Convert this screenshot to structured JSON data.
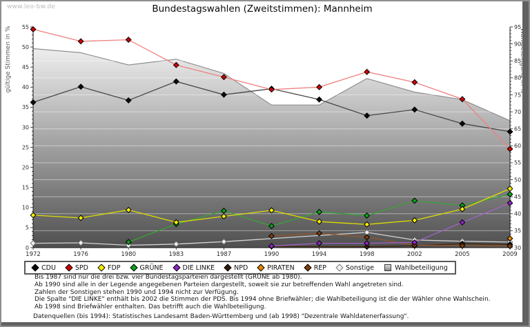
{
  "window": {
    "watermark": "www.leo-bw.de",
    "title": "Bundestagswahlen (Zweitstimmen): Mannheim"
  },
  "chart_data": {
    "type": "line",
    "title": "Bundestagswahlen (Zweitstimmen): Mannheim",
    "x_categories": [
      "1972",
      "1976",
      "1980",
      "1983",
      "1987",
      "1990",
      "1994",
      "1998",
      "2002",
      "2005",
      "2009"
    ],
    "y_left": {
      "label": "gültige Stimmen in %",
      "min": 0,
      "max": 55,
      "tick_major": 5,
      "tick_minor": 1
    },
    "y_right": {
      "label": "Wahlbeteiligung in %",
      "min": 30,
      "max": 95,
      "tick_major": 5,
      "tick_minor": 1
    },
    "grid": "horizontal-white-on-area",
    "legend_position": "bottom",
    "series": [
      {
        "name": "CDU",
        "axis": "left",
        "marker": "diamond",
        "line_color": "#464646",
        "marker_color": "#0a0a0a",
        "marker_stroke": "#000000",
        "values": [
          36.2,
          40.1,
          36.7,
          41.4,
          38.1,
          39.6,
          36.9,
          32.9,
          34.4,
          30.9,
          28.9
        ]
      },
      {
        "name": "SPD",
        "axis": "left",
        "marker": "diamond",
        "line_color": "#ee8080",
        "marker_color": "#d10000",
        "marker_stroke": "#000000",
        "values": [
          54.4,
          51.4,
          51.8,
          45.5,
          42.5,
          39.4,
          40.0,
          43.8,
          41.2,
          37.0,
          24.6
        ]
      },
      {
        "name": "FDP",
        "axis": "left",
        "marker": "diamond",
        "line_color": "#dede00",
        "marker_color": "#f8f000",
        "marker_stroke": "#000000",
        "values": [
          8.1,
          7.4,
          9.4,
          6.3,
          7.8,
          9.3,
          6.5,
          5.8,
          6.8,
          9.6,
          14.7
        ]
      },
      {
        "name": "GRÜNE",
        "axis": "left",
        "marker": "diamond",
        "line_color": "#35a535",
        "marker_color": "#0aa11e",
        "marker_stroke": "#000000",
        "values": [
          null,
          null,
          1.4,
          5.9,
          9.2,
          5.4,
          8.9,
          8.0,
          11.7,
          10.5,
          13.3
        ]
      },
      {
        "name": "DIE LINKE",
        "axis": "left",
        "marker": "diamond",
        "line_color": "#a263c9",
        "marker_color": "#8c25c0",
        "marker_stroke": "#000000",
        "values": [
          null,
          null,
          null,
          null,
          null,
          0.4,
          1.1,
          1.1,
          1.3,
          6.3,
          11.1
        ]
      },
      {
        "name": "NPD",
        "axis": "left",
        "marker": "diamond",
        "line_color": "#42280e",
        "marker_color": "#301d06",
        "marker_stroke": "#000000",
        "values": [
          null,
          null,
          null,
          null,
          null,
          0.3,
          null,
          0.2,
          0.5,
          1.0,
          0.8
        ]
      },
      {
        "name": "PIRATEN",
        "axis": "left",
        "marker": "diamond",
        "line_color": "#c97a20",
        "marker_color": "#e08400",
        "marker_stroke": "#000000",
        "values": [
          null,
          null,
          null,
          null,
          null,
          null,
          null,
          null,
          null,
          null,
          2.3
        ]
      },
      {
        "name": "REP",
        "axis": "left",
        "marker": "diamond",
        "line_color": "#96562b",
        "marker_color": "#7c3e10",
        "marker_stroke": "#000000",
        "values": [
          null,
          null,
          null,
          null,
          null,
          2.9,
          3.6,
          2.6,
          0.6,
          0.5,
          0.4
        ]
      },
      {
        "name": "Sonstige",
        "axis": "left",
        "marker": "diamond",
        "line_color": "#d4d4d4",
        "marker_color": "#efefef",
        "marker_stroke": "#787878",
        "values": [
          1.1,
          1.2,
          0.6,
          0.9,
          1.5,
          null,
          null,
          3.8,
          1.9,
          1.6,
          1.4
        ]
      },
      {
        "name": "Wahlbeteiligung",
        "axis": "right",
        "type": "area",
        "marker": "square",
        "line_color": "#8f8f8f",
        "fill_gradient_top": "#ffffff",
        "fill_gradient_bottom": "#505050",
        "values": [
          88.6,
          87.4,
          83.8,
          85.5,
          81.3,
          72.0,
          72.0,
          79.8,
          75.8,
          73.6,
          67.4
        ]
      }
    ]
  },
  "notes": {
    "lines": [
      "Bis 1987 sind nur die drei bzw. vier Bundestagsparteien dargestellt (GRÜNE ab 1980).",
      "Ab 1990 sind alle in der Legende angegebenen Parteien dargestellt, soweit sie zur betreffenden Wahl angetreten sind.",
      "Zahlen der Sonstigen stehen 1990 und 1994 nicht zur Verfügung.",
      "Die Spalte \"DIE LINKE\" enthält bis 2002 die Stimmen der PDS. Bis 1994 ohne Briefwähler; die Wahlbeteiligung ist die der Wähler ohne Wahlschein.",
      "Ab 1998 sind Briefwähler enthalten. Das betrifft auch die Wahlbeteiligung."
    ]
  },
  "source": "Datenquellen (bis 1994): Statistisches Landesamt Baden-Württemberg und (ab 1998) \"Dezentrale Wahldatenerfassung\"."
}
